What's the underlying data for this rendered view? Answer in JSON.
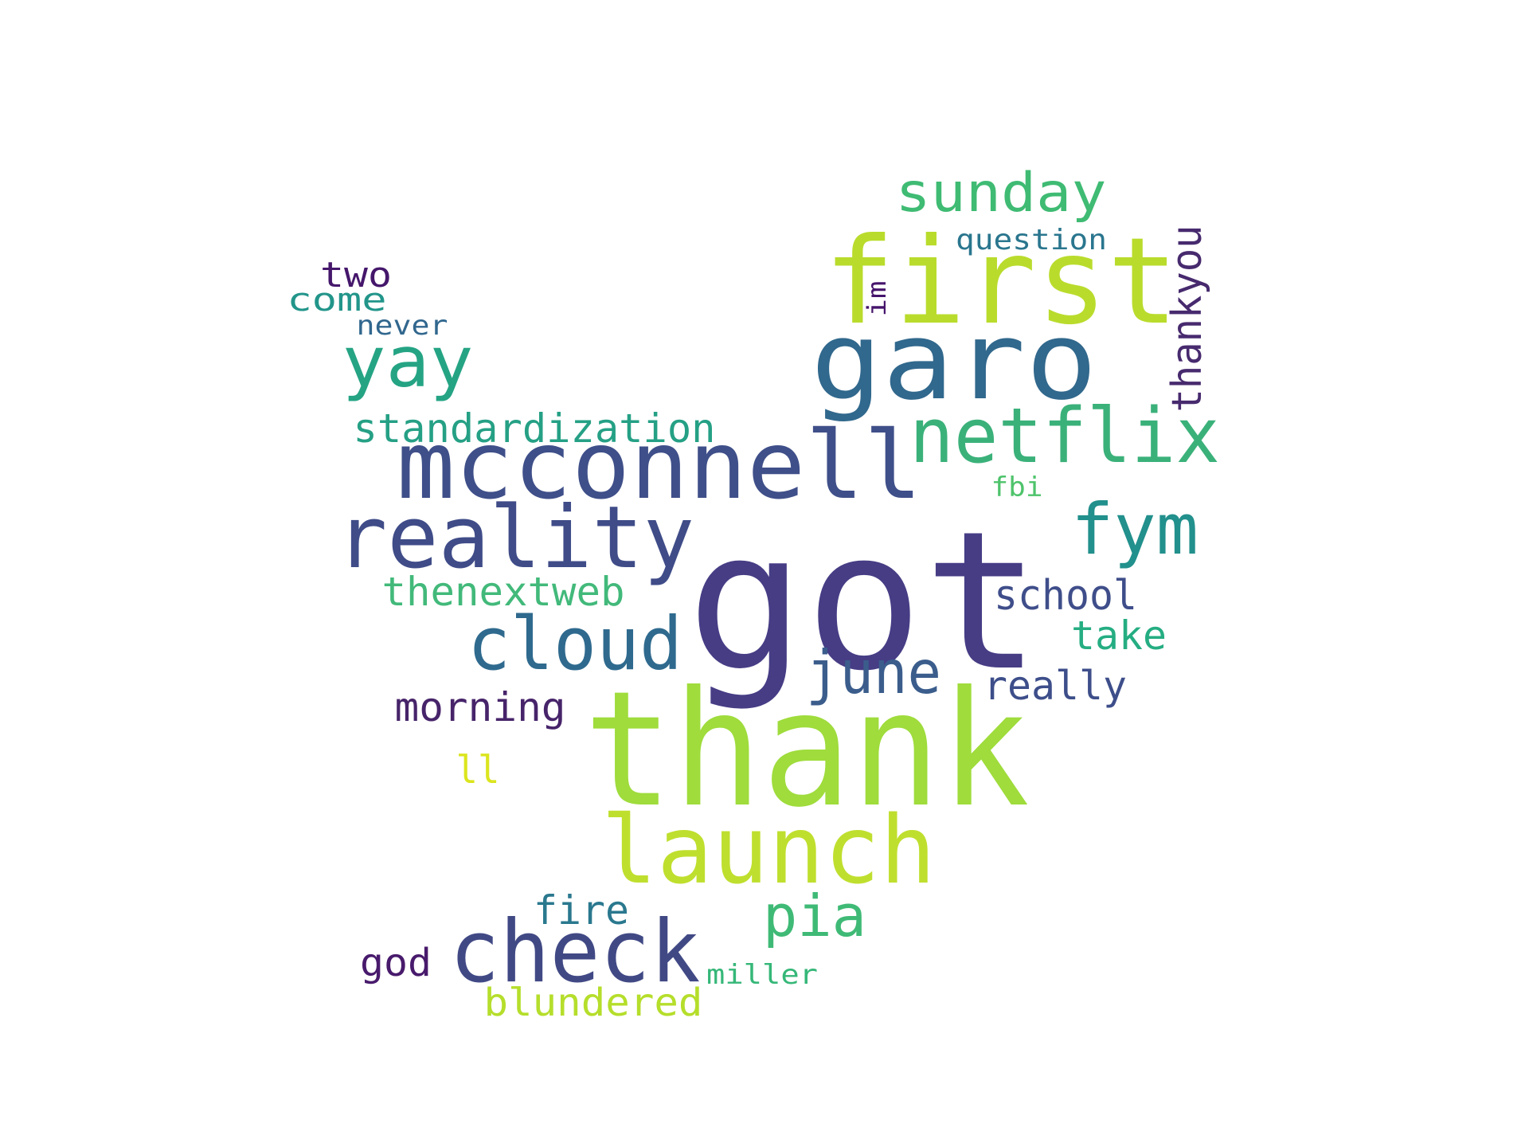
{
  "words": [
    {
      "text": "got",
      "color": "#463d85"
    },
    {
      "text": "thank",
      "color": "#9fdc3c"
    },
    {
      "text": "first",
      "color": "#b9dc2c"
    },
    {
      "text": "garo",
      "color": "#31688d"
    },
    {
      "text": "mcconnell",
      "color": "#3f4f89"
    },
    {
      "text": "reality",
      "color": "#3f4c88"
    },
    {
      "text": "launch",
      "color": "#bfdf2e"
    },
    {
      "text": "check",
      "color": "#414985"
    },
    {
      "text": "cloud",
      "color": "#2f6a8e"
    },
    {
      "text": "netflix",
      "color": "#3bb17a"
    },
    {
      "text": "yay",
      "color": "#25a484"
    },
    {
      "text": "fym",
      "color": "#22908c"
    },
    {
      "text": "sunday",
      "color": "#3fbb73"
    },
    {
      "text": "june",
      "color": "#3b5d8c"
    },
    {
      "text": "pia",
      "color": "#3fba76"
    },
    {
      "text": "school",
      "color": "#3f4e8a"
    },
    {
      "text": "thankyou",
      "color": "#472a6e"
    },
    {
      "text": "standardization",
      "color": "#25a085"
    },
    {
      "text": "thenextweb",
      "color": "#42b97a"
    },
    {
      "text": "morning",
      "color": "#47246a"
    },
    {
      "text": "really",
      "color": "#3d4e8a"
    },
    {
      "text": "take",
      "color": "#25ad82"
    },
    {
      "text": "fire",
      "color": "#2a788e"
    },
    {
      "text": "god",
      "color": "#481a6c"
    },
    {
      "text": "blundered",
      "color": "#b5de2b"
    },
    {
      "text": "two",
      "color": "#45176b"
    },
    {
      "text": "come",
      "color": "#22958a"
    },
    {
      "text": "question",
      "color": "#2a768e"
    },
    {
      "text": "never",
      "color": "#31678e"
    },
    {
      "text": "im",
      "color": "#45146b"
    },
    {
      "text": "ll",
      "color": "#dbe51e"
    },
    {
      "text": "fbi",
      "color": "#4ec36b"
    },
    {
      "text": "miller",
      "color": "#35b778"
    }
  ]
}
